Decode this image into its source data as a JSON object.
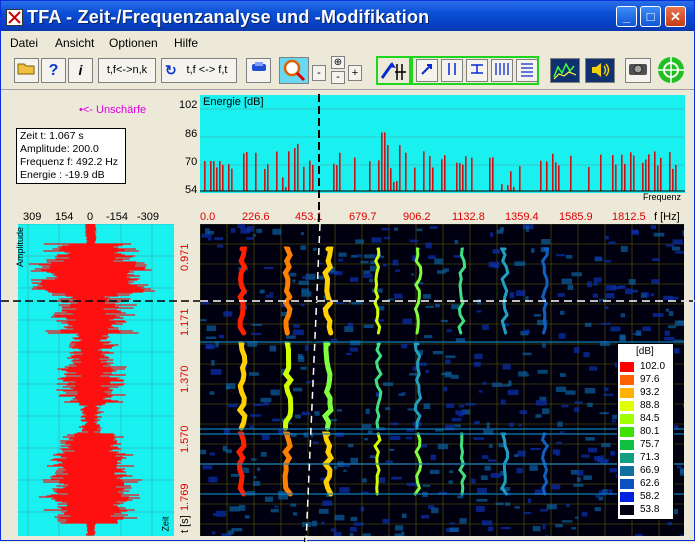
{
  "window": {
    "title": "TFA - Zeit-/Frequenzanalyse und -Modifikation"
  },
  "menu": [
    "Datei",
    "Ansicht",
    "Optionen",
    "Hilfe"
  ],
  "toolbar": {
    "btn_tn_fk": "t,f<->n,k",
    "btn_tf_ft": "t,f <-> f,t",
    "zoom_minus": "-",
    "zoom_plus": "+"
  },
  "blur_label": "•<- Unschärfe",
  "info": {
    "time": "Zeit t:  1.067 s",
    "amplitude": "Amplitude:  200.0",
    "frequency": "Frequenz f:  492.2 Hz",
    "energy": "Energie : -19.9 dB"
  },
  "energy_plot": {
    "title": "Energie [dB]",
    "xlabel": "Frequenz",
    "y_ticks": [
      "102",
      "86",
      "70",
      "54"
    ]
  },
  "amp_plot": {
    "ticks": [
      "309",
      "154",
      "0",
      "-154",
      "-309"
    ],
    "label": "Amplitude",
    "zeit": "Zeit"
  },
  "spectrogram": {
    "freq_ticks": [
      "0.0",
      "226.6",
      "453.1",
      "679.7",
      "906.2",
      "1132.8",
      "1359.4",
      "1585.9",
      "1812.5"
    ],
    "freq_unit": "f [Hz]",
    "time_ticks": [
      "0.971",
      "1.171",
      "1.370",
      "1.570",
      "1.769"
    ],
    "time_unit": "t [s]"
  },
  "legend": {
    "unit": "[dB]",
    "values": [
      "102.0",
      "97.6",
      "93.2",
      "88.8",
      "84.5",
      "80.1",
      "75.7",
      "71.3",
      "66.9",
      "62.6",
      "58.2",
      "53.8"
    ],
    "colors": [
      "#ff0000",
      "#ff6000",
      "#ffb000",
      "#e0ff00",
      "#a0ff00",
      "#40e000",
      "#10c040",
      "#10a080",
      "#1070a0",
      "#0a50c0",
      "#0020e0",
      "#000010"
    ]
  }
}
